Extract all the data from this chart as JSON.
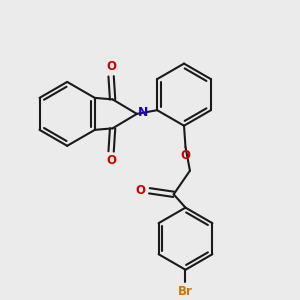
{
  "background_color": "#ebebeb",
  "bond_color": "#1a1a1a",
  "N_color": "#2200cc",
  "O_color": "#cc0000",
  "Br_color": "#cc7700",
  "figsize": [
    3.0,
    3.0
  ],
  "dpi": 100,
  "xlim": [
    0,
    10
  ],
  "ylim": [
    0,
    10
  ]
}
